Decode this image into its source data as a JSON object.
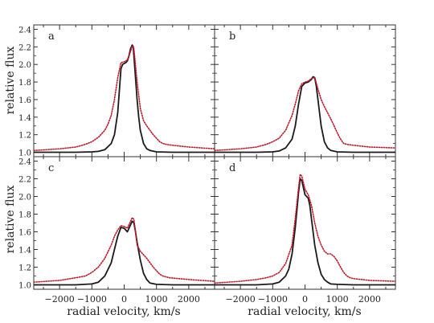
{
  "figure": {
    "ylabel": "relative flux",
    "xlabel": "radial velocity, km/s"
  },
  "colors": {
    "model": "#1a1a1a",
    "observed": "#c0182a",
    "axis": "#333333"
  },
  "chart_data": [
    {
      "panel": "a",
      "type": "line",
      "xlim": [
        -2800,
        2800
      ],
      "ylim": [
        0.95,
        2.45
      ],
      "yticks": [
        1.0,
        1.2,
        1.4,
        1.6,
        1.8,
        2.0,
        2.2,
        2.4
      ],
      "xticks": [
        -2000,
        -1000,
        0,
        1000,
        2000
      ],
      "show_x_tick_labels": false,
      "show_y_tick_labels": true,
      "series": [
        {
          "role": "model",
          "style": "solid",
          "x": [
            -2800,
            -1500,
            -1000,
            -800,
            -600,
            -400,
            -300,
            -200,
            -150,
            -100,
            -50,
            0,
            50,
            100,
            150,
            200,
            250,
            280,
            300,
            350,
            400,
            450,
            500,
            600,
            700,
            800,
            1000,
            1500,
            2800
          ],
          "y": [
            1.0,
            1.0,
            1.005,
            1.01,
            1.03,
            1.1,
            1.2,
            1.45,
            1.7,
            1.95,
            2.0,
            2.01,
            2.02,
            2.04,
            2.1,
            2.18,
            2.22,
            2.2,
            2.1,
            1.85,
            1.6,
            1.4,
            1.25,
            1.1,
            1.04,
            1.02,
            1.005,
            1.0,
            1.0
          ]
        },
        {
          "role": "observed",
          "style": "dotted",
          "x": [
            -2800,
            -2000,
            -1500,
            -1200,
            -1000,
            -800,
            -600,
            -500,
            -400,
            -300,
            -200,
            -100,
            0,
            100,
            200,
            250,
            300,
            400,
            500,
            600,
            700,
            800,
            900,
            1000,
            1100,
            1200,
            1300,
            1500,
            2000,
            2800
          ],
          "y": [
            1.02,
            1.04,
            1.06,
            1.09,
            1.12,
            1.17,
            1.25,
            1.32,
            1.42,
            1.6,
            1.85,
            2.02,
            2.03,
            2.05,
            2.15,
            2.21,
            2.18,
            1.8,
            1.5,
            1.36,
            1.3,
            1.25,
            1.2,
            1.16,
            1.12,
            1.1,
            1.09,
            1.08,
            1.06,
            1.04
          ]
        }
      ]
    },
    {
      "panel": "b",
      "type": "line",
      "xlim": [
        -2800,
        2800
      ],
      "ylim": [
        0.95,
        2.45
      ],
      "yticks": [
        1.0,
        1.2,
        1.4,
        1.6,
        1.8,
        2.0,
        2.2,
        2.4
      ],
      "xticks": [
        -2000,
        -1000,
        0,
        1000,
        2000
      ],
      "show_x_tick_labels": false,
      "show_y_tick_labels": false,
      "series": [
        {
          "role": "model",
          "style": "solid",
          "x": [
            -2800,
            -1500,
            -1000,
            -800,
            -600,
            -400,
            -300,
            -200,
            -100,
            0,
            100,
            200,
            250,
            300,
            350,
            400,
            450,
            500,
            600,
            700,
            800,
            1000,
            1500,
            2800
          ],
          "y": [
            1.0,
            1.0,
            1.005,
            1.015,
            1.05,
            1.15,
            1.3,
            1.55,
            1.75,
            1.79,
            1.8,
            1.83,
            1.86,
            1.85,
            1.75,
            1.6,
            1.45,
            1.3,
            1.12,
            1.05,
            1.02,
            1.005,
            1.0,
            1.0
          ]
        },
        {
          "role": "observed",
          "style": "dotted",
          "x": [
            -2800,
            -2000,
            -1500,
            -1200,
            -1000,
            -800,
            -600,
            -400,
            -300,
            -200,
            -100,
            0,
            100,
            200,
            300,
            400,
            500,
            600,
            700,
            800,
            900,
            1000,
            1100,
            1200,
            1300,
            1500,
            2000,
            2800
          ],
          "y": [
            1.02,
            1.04,
            1.06,
            1.09,
            1.12,
            1.16,
            1.25,
            1.42,
            1.55,
            1.7,
            1.78,
            1.8,
            1.81,
            1.84,
            1.85,
            1.72,
            1.6,
            1.52,
            1.45,
            1.38,
            1.3,
            1.22,
            1.15,
            1.1,
            1.09,
            1.08,
            1.06,
            1.05
          ]
        }
      ]
    },
    {
      "panel": "c",
      "type": "line",
      "xlim": [
        -2800,
        2800
      ],
      "ylim": [
        0.95,
        2.45
      ],
      "yticks": [
        1.0,
        1.2,
        1.4,
        1.6,
        1.8,
        2.0,
        2.2,
        2.4
      ],
      "xticks": [
        -2000,
        -1000,
        0,
        1000,
        2000
      ],
      "show_x_tick_labels": true,
      "show_y_tick_labels": true,
      "series": [
        {
          "role": "model",
          "style": "solid",
          "x": [
            -2800,
            -1500,
            -1000,
            -800,
            -600,
            -400,
            -300,
            -200,
            -100,
            0,
            100,
            200,
            250,
            300,
            350,
            400,
            500,
            600,
            700,
            800,
            1000,
            1500,
            2800
          ],
          "y": [
            1.0,
            1.0,
            1.01,
            1.03,
            1.1,
            1.25,
            1.4,
            1.55,
            1.65,
            1.64,
            1.6,
            1.68,
            1.72,
            1.7,
            1.6,
            1.48,
            1.28,
            1.13,
            1.06,
            1.02,
            1.005,
            1.0,
            1.0
          ]
        },
        {
          "role": "observed",
          "style": "dotted",
          "x": [
            -2800,
            -2000,
            -1500,
            -1200,
            -1000,
            -800,
            -600,
            -400,
            -300,
            -200,
            -100,
            0,
            100,
            200,
            250,
            300,
            350,
            400,
            500,
            600,
            700,
            800,
            900,
            1000,
            1100,
            1200,
            1400,
            2000,
            2800
          ],
          "y": [
            1.03,
            1.05,
            1.08,
            1.1,
            1.14,
            1.2,
            1.3,
            1.45,
            1.55,
            1.62,
            1.67,
            1.66,
            1.64,
            1.72,
            1.76,
            1.74,
            1.6,
            1.45,
            1.38,
            1.34,
            1.3,
            1.25,
            1.2,
            1.16,
            1.12,
            1.1,
            1.08,
            1.06,
            1.04
          ]
        }
      ]
    },
    {
      "panel": "d",
      "type": "line",
      "xlim": [
        -2800,
        2800
      ],
      "ylim": [
        0.95,
        2.45
      ],
      "yticks": [
        1.0,
        1.2,
        1.4,
        1.6,
        1.8,
        2.0,
        2.2,
        2.4
      ],
      "xticks": [
        -2000,
        -1000,
        0,
        1000,
        2000
      ],
      "show_x_tick_labels": true,
      "show_y_tick_labels": false,
      "series": [
        {
          "role": "model",
          "style": "solid",
          "x": [
            -2800,
            -1500,
            -1000,
            -800,
            -600,
            -500,
            -400,
            -300,
            -250,
            -200,
            -150,
            -100,
            -50,
            0,
            50,
            100,
            150,
            200,
            300,
            400,
            500,
            600,
            700,
            800,
            1000,
            1500,
            2800
          ],
          "y": [
            1.0,
            1.0,
            1.01,
            1.03,
            1.1,
            1.18,
            1.35,
            1.65,
            1.85,
            2.05,
            2.2,
            2.18,
            2.1,
            2.02,
            2.0,
            1.98,
            1.9,
            1.75,
            1.45,
            1.25,
            1.12,
            1.06,
            1.03,
            1.01,
            1.005,
            1.0,
            1.0
          ]
        },
        {
          "role": "observed",
          "style": "dotted",
          "x": [
            -2800,
            -2000,
            -1500,
            -1200,
            -1000,
            -800,
            -600,
            -400,
            -300,
            -200,
            -150,
            -100,
            0,
            100,
            200,
            300,
            400,
            500,
            600,
            700,
            800,
            900,
            1000,
            1100,
            1200,
            1300,
            1400,
            1500,
            2000,
            2800
          ],
          "y": [
            1.02,
            1.04,
            1.06,
            1.08,
            1.1,
            1.14,
            1.24,
            1.45,
            1.75,
            2.1,
            2.25,
            2.23,
            2.08,
            2.02,
            1.9,
            1.7,
            1.55,
            1.45,
            1.38,
            1.35,
            1.35,
            1.32,
            1.27,
            1.2,
            1.14,
            1.1,
            1.08,
            1.07,
            1.05,
            1.04
          ]
        }
      ]
    }
  ]
}
